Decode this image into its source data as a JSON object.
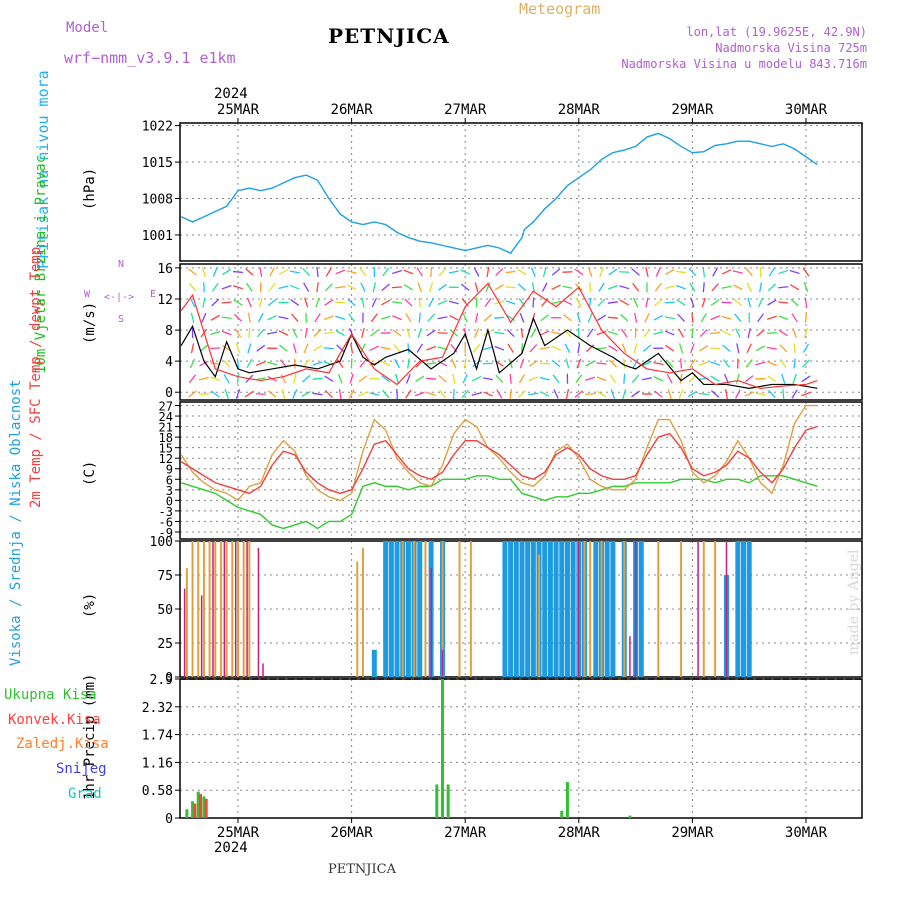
{
  "header": {
    "model_label": "Model",
    "model_name": "wrf−nmm_v3.9.1  e1km",
    "station": "PETNJICA",
    "product": "Meteogram",
    "coords": "lon,lat (19.9625E, 42.9N)",
    "altitude": "Nadmorska Visina 725m",
    "model_altitude": "Nadmorska Visina u modelu 843.716m"
  },
  "footer": {
    "station": "PETNJICA",
    "watermark": "made by Angel"
  },
  "dates": {
    "year": "2024",
    "days": [
      "25MAR",
      "26MAR",
      "27MAR",
      "28MAR",
      "29MAR",
      "30MAR"
    ]
  },
  "wind_compass": {
    "n": "N",
    "s": "S",
    "e": "E",
    "w": "W"
  },
  "colors": {
    "pressure": "#1ea0e6",
    "wind_speed": "#000000",
    "gust": "#ff3030",
    "temp_2m": "#f04040",
    "temp_sfc": "#e0a040",
    "dewpoint": "#30cc30",
    "cloud_high": "#1e9be0",
    "cloud_mid": "#e0a040",
    "cloud_low": "#c02080",
    "precip_total": "#30c030",
    "precip_conv": "#ff4040",
    "precip_frozen": "#ff8030",
    "snow": "#4040e0",
    "hail": "#20c0c0"
  },
  "chart_data": [
    {
      "type": "line",
      "title": "Pritisak na nivou mora",
      "ylabel": "(hPa)",
      "ylim": [
        996,
        1022.5
      ],
      "yticks": [
        "1001",
        "1008",
        "1015",
        "1022"
      ],
      "series": [
        {
          "x": [
            0,
            0.1,
            0.2,
            0.3,
            0.4,
            0.5,
            0.6,
            0.7,
            0.8,
            0.9,
            1.0,
            1.1,
            1.2,
            1.3,
            1.4,
            1.5,
            1.6,
            1.7,
            1.8,
            1.9,
            2.0,
            2.1,
            2.2,
            2.3,
            2.4,
            2.5,
            2.6,
            2.7,
            2.8,
            2.9,
            3.0,
            3.02,
            3.1,
            3.2,
            3.3,
            3.4,
            3.5,
            3.6,
            3.7,
            3.8,
            3.9,
            4.0,
            4.1,
            4.2,
            4.3,
            4.4,
            4.5,
            4.6,
            4.7,
            4.8,
            4.9,
            5.0,
            5.1,
            5.2,
            5.3,
            5.4,
            5.5,
            5.6
          ],
          "values": [
            1004.5,
            1003.5,
            1004.5,
            1005.5,
            1006.5,
            1009.5,
            1010.0,
            1009.5,
            1010.0,
            1011.0,
            1012.0,
            1012.5,
            1011.5,
            1008.0,
            1005.0,
            1003.5,
            1003.0,
            1003.5,
            1003.0,
            1001.5,
            1000.5,
            999.8,
            999.5,
            999.0,
            998.5,
            998.0,
            998.5,
            999.0,
            998.5,
            997.5,
            1000.5,
            1002.0,
            1003.5,
            1006.0,
            1008.0,
            1010.5,
            1012.0,
            1013.5,
            1015.5,
            1016.8,
            1017.3,
            1018.0,
            1019.8,
            1020.5,
            1019.5,
            1018.0,
            1016.8,
            1017.0,
            1018.2,
            1018.5,
            1019.0,
            1019.0,
            1018.5,
            1018.0,
            1018.5,
            1017.5,
            1016.0,
            1014.5
          ]
        }
      ]
    },
    {
      "type": "line",
      "title": "10m Vjetar Brzina i Pravac",
      "ylabel": "(m/s)",
      "ylim": [
        -1,
        16.5
      ],
      "yticks": [
        "0",
        "4",
        "8",
        "12",
        "16"
      ],
      "series": [
        {
          "name": "speed",
          "x": [
            0,
            0.1,
            0.2,
            0.3,
            0.4,
            0.5,
            0.6,
            0.8,
            1.0,
            1.2,
            1.4,
            1.5,
            1.6,
            1.7,
            1.8,
            2.0,
            2.2,
            2.4,
            2.5,
            2.6,
            2.7,
            2.8,
            3.0,
            3.1,
            3.2,
            3.4,
            3.6,
            3.8,
            3.9,
            4.0,
            4.2,
            4.4,
            4.5,
            4.6,
            4.8,
            5.0,
            5.2,
            5.4,
            5.6
          ],
          "values": [
            6,
            8.5,
            4,
            2,
            6.5,
            3,
            2.5,
            3,
            3.5,
            3,
            4,
            7.5,
            4.5,
            3.5,
            4.5,
            5.5,
            3,
            5,
            7.5,
            3,
            8,
            2.5,
            5,
            9.5,
            6,
            8,
            6,
            4.5,
            3.5,
            3,
            5,
            1.5,
            2.5,
            1,
            1,
            0.5,
            1,
            1,
            0.5
          ]
        },
        {
          "name": "gust",
          "x": [
            0,
            0.1,
            0.3,
            0.5,
            0.7,
            0.9,
            1.1,
            1.3,
            1.5,
            1.7,
            1.9,
            2.1,
            2.3,
            2.5,
            2.7,
            2.9,
            3.1,
            3.3,
            3.5,
            3.7,
            3.9,
            4.1,
            4.3,
            4.5,
            4.7,
            4.9,
            5.1,
            5.3,
            5.5,
            5.6
          ],
          "values": [
            10.5,
            12.5,
            3,
            2,
            1.5,
            2,
            3,
            2.5,
            7.5,
            3,
            1,
            4,
            4.5,
            11,
            14,
            9,
            13,
            11,
            13.5,
            8,
            5,
            3,
            2.5,
            3,
            1,
            1.5,
            0.5,
            0.8,
            1,
            1.5
          ]
        }
      ]
    },
    {
      "type": "line",
      "title": "2m Temp / SFC Temp / dewpt Temp",
      "ylabel": "(C)",
      "ylim": [
        -11,
        28
      ],
      "yticks": [
        "-9",
        "-6",
        "-3",
        "0",
        "3",
        "6",
        "9",
        "12",
        "15",
        "18",
        "21",
        "24",
        "27"
      ],
      "series": [
        {
          "name": "2m Temp",
          "x": [
            0,
            0.1,
            0.2,
            0.3,
            0.4,
            0.5,
            0.6,
            0.7,
            0.8,
            0.9,
            1.0,
            1.1,
            1.2,
            1.3,
            1.4,
            1.5,
            1.6,
            1.7,
            1.8,
            1.9,
            2.0,
            2.1,
            2.2,
            2.3,
            2.4,
            2.5,
            2.6,
            2.7,
            2.8,
            2.9,
            3.0,
            3.1,
            3.2,
            3.3,
            3.4,
            3.5,
            3.6,
            3.7,
            3.8,
            3.9,
            4.0,
            4.1,
            4.2,
            4.3,
            4.4,
            4.5,
            4.6,
            4.7,
            4.8,
            4.9,
            5.0,
            5.1,
            5.2,
            5.3,
            5.4,
            5.5,
            5.6
          ],
          "values": [
            11,
            9,
            7,
            5,
            4,
            3,
            2,
            4,
            10,
            14,
            13,
            8,
            5,
            3,
            2,
            3,
            9,
            16,
            17,
            13,
            9,
            7,
            6,
            8,
            13,
            17,
            17,
            15,
            13,
            10,
            7,
            6,
            8,
            13,
            15,
            13,
            9,
            7,
            6,
            6,
            7,
            13,
            18,
            19,
            15,
            9,
            7,
            8,
            10,
            14,
            12,
            8,
            5,
            9,
            15,
            20,
            21
          ]
        },
        {
          "name": "SFC Temp",
          "x": [
            0,
            0.1,
            0.2,
            0.3,
            0.4,
            0.5,
            0.6,
            0.7,
            0.8,
            0.9,
            1.0,
            1.1,
            1.2,
            1.3,
            1.4,
            1.5,
            1.6,
            1.7,
            1.8,
            1.9,
            2.0,
            2.1,
            2.2,
            2.3,
            2.4,
            2.5,
            2.6,
            2.7,
            2.8,
            2.9,
            3.0,
            3.1,
            3.2,
            3.3,
            3.4,
            3.5,
            3.6,
            3.7,
            3.8,
            3.9,
            4.0,
            4.1,
            4.2,
            4.3,
            4.4,
            4.5,
            4.6,
            4.7,
            4.8,
            4.9,
            5.0,
            5.1,
            5.2,
            5.3,
            5.4,
            5.5,
            5.6
          ],
          "values": [
            13,
            8,
            5,
            3,
            2,
            0,
            4,
            5,
            13,
            17,
            14,
            7,
            3,
            1,
            0,
            2,
            14,
            23,
            20,
            12,
            8,
            5,
            4,
            10,
            19,
            23,
            21,
            15,
            12,
            8,
            5,
            4,
            7,
            14,
            16,
            12,
            6,
            4,
            3,
            3,
            6,
            15,
            23,
            23,
            17,
            8,
            5,
            7,
            11,
            17,
            12,
            5,
            2,
            10,
            22,
            27,
            27
          ]
        },
        {
          "name": "dewpt Temp",
          "x": [
            0,
            0.1,
            0.2,
            0.3,
            0.4,
            0.5,
            0.6,
            0.7,
            0.8,
            0.9,
            1.0,
            1.1,
            1.2,
            1.3,
            1.4,
            1.5,
            1.6,
            1.7,
            1.8,
            1.9,
            2.0,
            2.1,
            2.2,
            2.3,
            2.4,
            2.5,
            2.6,
            2.7,
            2.8,
            2.9,
            3.0,
            3.1,
            3.2,
            3.3,
            3.4,
            3.5,
            3.6,
            3.7,
            3.8,
            3.9,
            4.0,
            4.1,
            4.2,
            4.3,
            4.4,
            4.5,
            4.6,
            4.7,
            4.8,
            4.9,
            5.0,
            5.1,
            5.2,
            5.3,
            5.4,
            5.5,
            5.6
          ],
          "values": [
            5,
            4,
            3,
            2,
            0,
            -2,
            -3,
            -4,
            -7,
            -8,
            -7,
            -6,
            -8,
            -6,
            -6,
            -4,
            4,
            5,
            4,
            4,
            3,
            4,
            4,
            6,
            6,
            6,
            7,
            7,
            6,
            6,
            2,
            1,
            0,
            1,
            1,
            2,
            2,
            3,
            4,
            4,
            5,
            5,
            5,
            5,
            6,
            6,
            6,
            5,
            6,
            6,
            5,
            7,
            7,
            7,
            6,
            5,
            4
          ]
        }
      ]
    },
    {
      "type": "bar",
      "title": "Visoka / Srednja / Niska Oblacnost",
      "ylabel": "(%)",
      "ylim": [
        0,
        100
      ],
      "yticks": [
        "0",
        "25",
        "50",
        "75",
        "100"
      ],
      "series": [
        {
          "name": "Visoka Oblacnost",
          "x": [
            1.7,
            1.8,
            1.85,
            1.9,
            1.95,
            2.0,
            2.05,
            2.1,
            2.2,
            2.3,
            2.85,
            2.9,
            2.95,
            3.0,
            3.05,
            3.1,
            3.15,
            3.2,
            3.25,
            3.3,
            3.35,
            3.4,
            3.45,
            3.5,
            3.55,
            3.65,
            3.7,
            3.75,
            3.8,
            3.9,
            4.0,
            4.05,
            4.8,
            4.9,
            4.95,
            5.0
          ],
          "values": [
            20,
            100,
            100,
            100,
            100,
            100,
            100,
            100,
            100,
            100,
            100,
            100,
            100,
            100,
            100,
            100,
            100,
            100,
            100,
            100,
            100,
            100,
            100,
            100,
            100,
            100,
            100,
            100,
            100,
            100,
            100,
            100,
            75,
            100,
            100,
            100
          ]
        },
        {
          "name": "Srednja Oblacnost",
          "x": [
            0.05,
            0.1,
            0.15,
            0.2,
            0.25,
            0.3,
            0.35,
            0.4,
            0.45,
            0.5,
            0.55,
            0.6,
            1.55,
            1.6,
            1.95,
            2.05,
            2.15,
            2.3,
            2.45,
            2.55,
            3.15,
            3.5,
            3.55,
            3.6,
            3.7,
            3.9,
            4.2,
            4.4,
            4.6,
            4.7
          ],
          "values": [
            80,
            100,
            100,
            100,
            100,
            100,
            100,
            100,
            100,
            100,
            100,
            100,
            85,
            95,
            100,
            100,
            100,
            100,
            100,
            100,
            90,
            100,
            100,
            100,
            100,
            100,
            100,
            100,
            100,
            100
          ]
        },
        {
          "name": "Niska Oblacnost",
          "x": [
            0.03,
            0.18,
            0.28,
            0.38,
            0.48,
            0.58,
            0.68,
            0.72,
            2.2,
            2.3,
            3.5,
            3.95,
            4.0,
            4.55,
            4.8
          ],
          "values": [
            65,
            60,
            100,
            100,
            100,
            100,
            95,
            10,
            80,
            20,
            100,
            30,
            100,
            100,
            100
          ]
        }
      ]
    },
    {
      "type": "bar",
      "title": "1hr Precip",
      "ylabel": "1hr Precip (mm)",
      "ylim": [
        0,
        2.9
      ],
      "yticks": [
        "0",
        "0.58",
        "1.16",
        "1.74",
        "2.32",
        "2.9"
      ],
      "legend": [
        "Ukupna Kisa",
        "Konvek.Kisa",
        "Zaledj.Kisa",
        "Snijeg",
        "Grad"
      ],
      "series": [
        {
          "name": "Ukupna Kisa",
          "x": [
            0.05,
            0.1,
            0.15,
            0.2,
            2.25,
            2.3,
            2.35,
            3.35,
            3.4,
            3.95
          ],
          "values": [
            0.18,
            0.35,
            0.55,
            0.45,
            0.7,
            2.9,
            0.7,
            0.15,
            0.75,
            0.05
          ]
        },
        {
          "name": "Konvek.Kisa",
          "x": [
            0.12,
            0.17,
            0.22
          ],
          "values": [
            0.3,
            0.5,
            0.4
          ]
        }
      ]
    }
  ]
}
